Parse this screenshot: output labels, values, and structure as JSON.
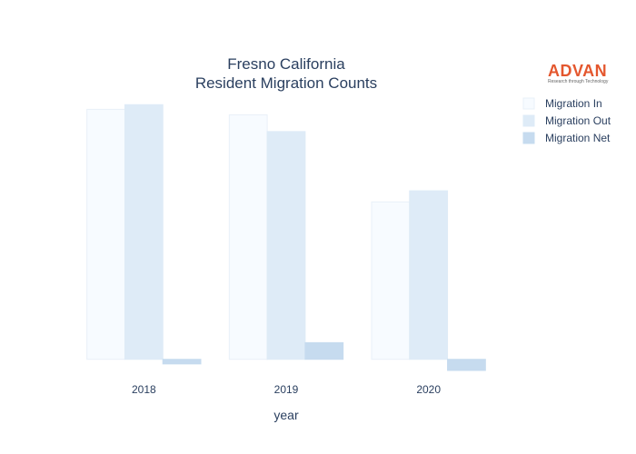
{
  "chart_data": {
    "type": "bar",
    "title_lines": [
      "Fresno California",
      "Resident Migration Counts"
    ],
    "xlabel": "year",
    "ylabel": "",
    "categories": [
      "2018",
      "2019",
      "2020"
    ],
    "series": [
      {
        "name": "Migration In",
        "values": [
          270,
          264,
          170
        ],
        "color": "#f7fbff",
        "stroke": "#e9f0f8"
      },
      {
        "name": "Migration Out",
        "values": [
          275,
          246,
          182
        ],
        "color": "#deebf7",
        "stroke": "#deebf7"
      },
      {
        "name": "Migration Net",
        "values": [
          -5,
          18,
          -12
        ],
        "color": "#c6dbef",
        "stroke": "#c6dbef"
      }
    ],
    "ylim": [
      -14,
      290
    ],
    "grid": false,
    "legend": "top-right"
  },
  "logo": {
    "name": "ADVAN",
    "tagline": "Research through Technology",
    "color": "#e4572e"
  }
}
